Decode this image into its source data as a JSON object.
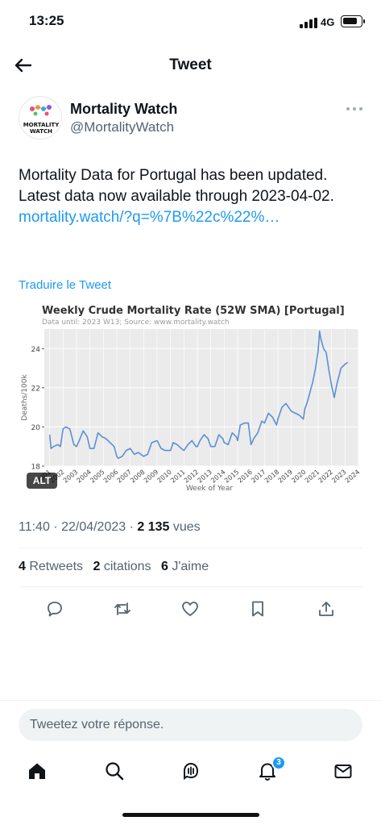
{
  "status_bar": {
    "time": "13:25",
    "network": "4G",
    "battery_level": 0.8
  },
  "header": {
    "title": "Tweet",
    "back_icon": "arrow-left-icon"
  },
  "author": {
    "avatar_text_1": "MORTALITY",
    "avatar_text_2": "WATCH",
    "name": "Mortality Watch",
    "handle": "@MortalityWatch"
  },
  "tweet": {
    "text_1": "Mortality Data for Portugal has been updated. Latest data now available through 2023-04-02. ",
    "link_text": "mortality.watch/?q=%7B%22c%22%…",
    "translate": "Traduire le Tweet"
  },
  "chart_data": {
    "type": "line",
    "title": "Weekly Crude Mortality Rate (52W SMA) [Portugal]",
    "subtitle": "Data until: 2023 W13; Source: www.mortality.watch",
    "xlabel": "Week of Year",
    "ylabel": "Deaths/100k",
    "ylim": [
      18,
      25
    ],
    "yticks": [
      18,
      20,
      22,
      24
    ],
    "xticks": [
      "2001",
      "2002",
      "2003",
      "2004",
      "2005",
      "2006",
      "2007",
      "2008",
      "2009",
      "2010",
      "2011",
      "2012",
      "2013",
      "2014",
      "2015",
      "2016",
      "2017",
      "2018",
      "2019",
      "2020",
      "2021",
      "2022",
      "2023",
      "2024"
    ],
    "line_color": "#5b8fd6",
    "grid": true,
    "series": [
      {
        "x": [
          2001.0,
          2001.1,
          2001.3,
          2001.6,
          2001.8,
          2002.0,
          2002.2,
          2002.5,
          2002.8,
          2003.0,
          2003.2,
          2003.5,
          2003.8,
          2004.0,
          2004.3,
          2004.6,
          2004.9,
          2005.2,
          2005.5,
          2005.8,
          2006.0,
          2006.1,
          2006.4,
          2006.7,
          2007.0,
          2007.3,
          2007.6,
          2008.0,
          2008.3,
          2008.6,
          2009.0,
          2009.3,
          2009.6,
          2010.0,
          2010.2,
          2010.5,
          2010.8,
          2011.0,
          2011.3,
          2011.6,
          2011.9,
          2012.0,
          2012.2,
          2012.5,
          2012.8,
          2013.0,
          2013.3,
          2013.6,
          2013.9,
          2014.0,
          2014.3,
          2014.6,
          2014.9,
          2015.0,
          2015.2,
          2015.5,
          2015.8,
          2016.0,
          2016.2,
          2016.5,
          2016.8,
          2017.0,
          2017.3,
          2017.6,
          2017.9,
          2018.0,
          2018.3,
          2018.6,
          2018.9,
          2019.0,
          2019.3,
          2019.6,
          2019.9,
          2020.0,
          2020.2,
          2020.4,
          2020.6,
          2020.8,
          2021.0,
          2021.1,
          2021.2,
          2021.4,
          2021.6,
          2021.8,
          2022.0,
          2022.2,
          2022.4,
          2022.7,
          2023.0,
          2023.2
        ],
        "y": [
          19.6,
          18.9,
          19.0,
          19.1,
          19.0,
          19.9,
          20.0,
          19.9,
          19.1,
          19.0,
          19.3,
          19.8,
          19.5,
          18.9,
          18.9,
          19.7,
          19.5,
          19.4,
          19.2,
          19.0,
          18.5,
          18.4,
          18.5,
          18.8,
          18.9,
          18.6,
          18.7,
          18.5,
          18.6,
          19.2,
          19.3,
          18.9,
          18.8,
          18.8,
          19.2,
          19.1,
          18.9,
          18.8,
          19.1,
          19.3,
          19.0,
          19.0,
          19.3,
          19.6,
          19.4,
          19.0,
          19.0,
          19.6,
          19.4,
          19.2,
          19.1,
          19.7,
          19.5,
          19.3,
          20.1,
          20.2,
          20.2,
          19.1,
          19.4,
          19.7,
          20.3,
          20.2,
          20.7,
          20.5,
          20.1,
          20.4,
          21.0,
          21.2,
          20.9,
          20.8,
          20.7,
          20.6,
          20.4,
          20.9,
          21.3,
          21.8,
          22.3,
          23.0,
          23.9,
          24.9,
          24.5,
          24.0,
          23.8,
          22.9,
          22.1,
          21.5,
          22.2,
          23.0,
          23.2,
          23.3
        ]
      }
    ]
  },
  "alt_badge": "ALT",
  "meta": {
    "time": "11:40 · 22/04/2023 · ",
    "views_count": "2 135",
    "views_label": " vues"
  },
  "stats": {
    "retweets_count": "4",
    "retweets_label": " Retweets",
    "quotes_count": "2",
    "quotes_label": " citations",
    "likes_count": "6",
    "likes_label": " J'aime"
  },
  "actions": [
    "reply-icon",
    "retweet-icon",
    "like-icon",
    "bookmark-icon",
    "share-icon"
  ],
  "reply": {
    "placeholder": "Tweetez votre réponse."
  },
  "tab_bar": {
    "items": [
      "home-icon",
      "search-icon",
      "spaces-icon",
      "notifications-icon",
      "messages-icon"
    ],
    "notification_badge": "3"
  }
}
